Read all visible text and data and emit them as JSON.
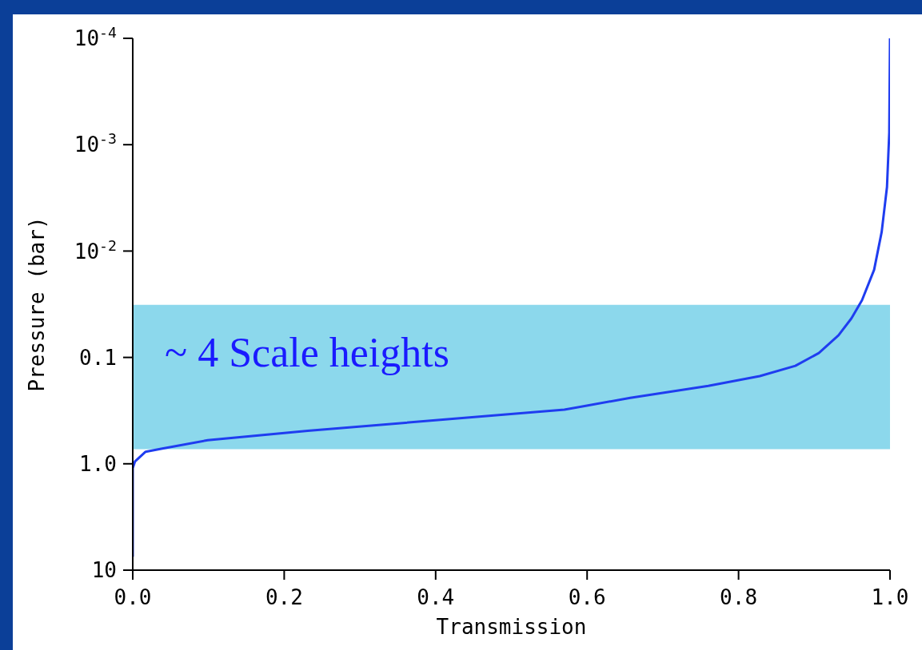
{
  "chart_data": {
    "type": "line",
    "xlabel": "Transmission",
    "ylabel": "Pressure (bar)",
    "x": [
      0,
      0.0,
      0.003,
      0.017,
      0.039,
      0.099,
      0.231,
      0.57,
      0.657,
      0.76,
      0.828,
      0.875,
      0.906,
      0.932,
      0.949,
      0.963,
      0.979,
      0.989,
      0.996,
      0.999,
      1.0
    ],
    "series": [
      {
        "color": "#1f3df0",
        "values": [
          7.5,
          1.1,
          0.95,
          0.77,
          0.72,
          0.6,
          0.49,
          0.31,
          0.24,
          0.185,
          0.15,
          0.12,
          0.091,
          0.062,
          0.043,
          0.029,
          0.015,
          0.0066,
          0.0025,
          0.00077,
          0.0001
        ]
      }
    ],
    "log": "y",
    "xlim": [
      0,
      1
    ],
    "xticks": [
      {
        "value": 0,
        "label": "0.0"
      },
      0.2,
      0.4,
      0.6,
      0.8,
      {
        "value": 1,
        "label": "1.0"
      }
    ],
    "ylim": [
      10,
      0.0001
    ],
    "yticks": [
      {
        "value": 0.0001,
        "label": "10$^{-4}$"
      },
      {
        "value": 0.001,
        "label": "10$^{-3}$"
      },
      {
        "value": 0.01,
        "label": "10$^{-2}$"
      },
      0.1,
      {
        "value": 1,
        "label": "1.0"
      },
      10
    ],
    "bands": [
      {
        "axis": "y",
        "from": 0.032,
        "to": 0.73,
        "label": "~ 4 Scale heights",
        "color": "#8cd8ec"
      }
    ],
    "grid": false,
    "marker": "none",
    "line_style": "solid"
  }
}
